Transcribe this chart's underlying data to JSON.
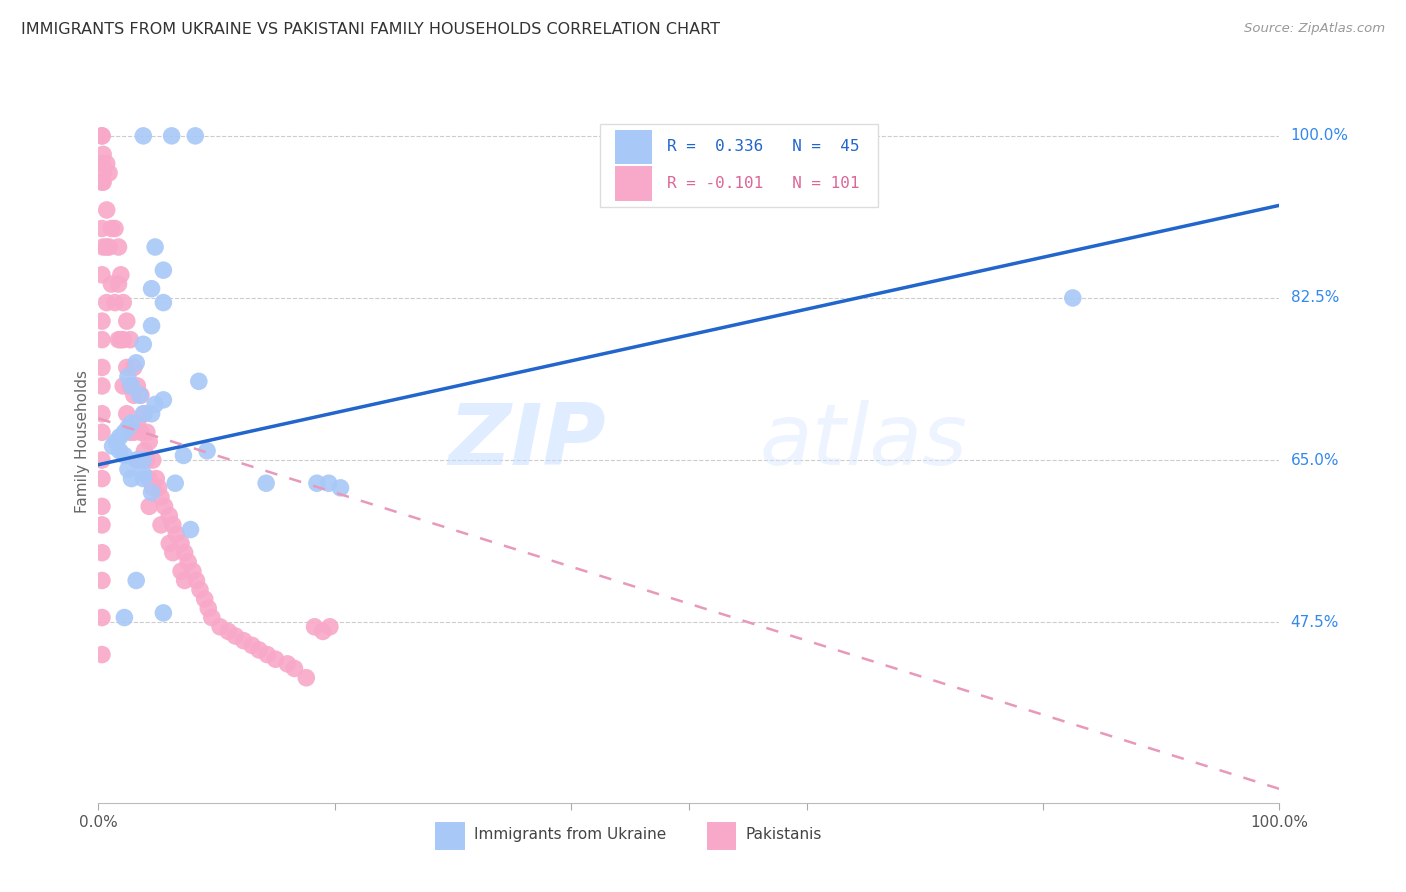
{
  "title": "IMMIGRANTS FROM UKRAINE VS PAKISTANI FAMILY HOUSEHOLDS CORRELATION CHART",
  "source": "Source: ZipAtlas.com",
  "ylabel": "Family Households",
  "ytick_labels": [
    "100.0%",
    "82.5%",
    "65.0%",
    "47.5%"
  ],
  "ytick_values": [
    1.0,
    0.825,
    0.65,
    0.475
  ],
  "xlim": [
    0.0,
    1.0
  ],
  "ylim": [
    0.28,
    1.06
  ],
  "ukraine_color": "#A8C8F8",
  "pakistan_color": "#F8A8C8",
  "ukraine_line_color": "#2266CC",
  "pakistan_line_color": "#E899BB",
  "watermark_zip": "ZIP",
  "watermark_atlas": "atlas",
  "grid_color": "#CCCCCC",
  "background_color": "#FFFFFF",
  "ukraine_line_y0": 0.645,
  "ukraine_line_y1": 0.925,
  "pakistan_line_y0": 0.695,
  "pakistan_line_y1": 0.295,
  "ukraine_scatter_x": [
    0.062,
    0.082,
    0.038,
    0.048,
    0.055,
    0.045,
    0.055,
    0.045,
    0.038,
    0.032,
    0.025,
    0.028,
    0.035,
    0.055,
    0.048,
    0.045,
    0.038,
    0.028,
    0.025,
    0.022,
    0.018,
    0.015,
    0.012,
    0.018,
    0.022,
    0.032,
    0.025,
    0.038,
    0.028,
    0.065,
    0.045,
    0.142,
    0.072,
    0.085,
    0.092,
    0.078,
    0.032,
    0.055,
    0.022,
    0.185,
    0.195,
    0.205,
    0.825,
    0.038,
    0.038
  ],
  "ukraine_scatter_y": [
    1.0,
    1.0,
    1.0,
    0.88,
    0.855,
    0.835,
    0.82,
    0.795,
    0.775,
    0.755,
    0.74,
    0.73,
    0.72,
    0.715,
    0.71,
    0.7,
    0.7,
    0.69,
    0.685,
    0.68,
    0.675,
    0.67,
    0.665,
    0.66,
    0.655,
    0.65,
    0.64,
    0.635,
    0.63,
    0.625,
    0.615,
    0.625,
    0.655,
    0.735,
    0.66,
    0.575,
    0.52,
    0.485,
    0.48,
    0.625,
    0.625,
    0.62,
    0.825,
    0.63,
    0.65
  ],
  "pakistan_scatter_x": [
    0.004,
    0.004,
    0.004,
    0.004,
    0.007,
    0.007,
    0.007,
    0.007,
    0.009,
    0.009,
    0.011,
    0.011,
    0.014,
    0.014,
    0.017,
    0.017,
    0.017,
    0.019,
    0.019,
    0.021,
    0.021,
    0.021,
    0.024,
    0.024,
    0.024,
    0.027,
    0.027,
    0.027,
    0.03,
    0.03,
    0.03,
    0.033,
    0.033,
    0.033,
    0.036,
    0.036,
    0.036,
    0.039,
    0.039,
    0.041,
    0.041,
    0.043,
    0.043,
    0.043,
    0.046,
    0.046,
    0.049,
    0.051,
    0.053,
    0.053,
    0.056,
    0.06,
    0.06,
    0.063,
    0.063,
    0.066,
    0.07,
    0.07,
    0.073,
    0.073,
    0.076,
    0.08,
    0.083,
    0.086,
    0.09,
    0.093,
    0.096,
    0.103,
    0.11,
    0.116,
    0.123,
    0.13,
    0.136,
    0.143,
    0.15,
    0.16,
    0.166,
    0.176,
    0.183,
    0.19,
    0.196,
    0.003,
    0.003,
    0.003,
    0.003,
    0.003,
    0.003,
    0.003,
    0.003,
    0.003,
    0.003,
    0.003,
    0.003,
    0.003,
    0.003,
    0.003,
    0.003,
    0.003,
    0.003,
    0.003,
    0.003
  ],
  "pakistan_scatter_y": [
    0.98,
    0.96,
    0.95,
    0.88,
    0.97,
    0.92,
    0.88,
    0.82,
    0.96,
    0.88,
    0.9,
    0.84,
    0.9,
    0.82,
    0.88,
    0.84,
    0.78,
    0.85,
    0.78,
    0.82,
    0.78,
    0.73,
    0.8,
    0.75,
    0.7,
    0.78,
    0.73,
    0.68,
    0.75,
    0.72,
    0.68,
    0.73,
    0.69,
    0.65,
    0.72,
    0.68,
    0.65,
    0.7,
    0.66,
    0.68,
    0.65,
    0.67,
    0.63,
    0.6,
    0.65,
    0.62,
    0.63,
    0.62,
    0.61,
    0.58,
    0.6,
    0.59,
    0.56,
    0.58,
    0.55,
    0.57,
    0.56,
    0.53,
    0.55,
    0.52,
    0.54,
    0.53,
    0.52,
    0.51,
    0.5,
    0.49,
    0.48,
    0.47,
    0.465,
    0.46,
    0.455,
    0.45,
    0.445,
    0.44,
    0.435,
    0.43,
    0.425,
    0.415,
    0.47,
    0.465,
    0.47,
    1.0,
    1.0,
    0.97,
    0.95,
    0.9,
    0.85,
    0.8,
    0.78,
    0.75,
    0.73,
    0.7,
    0.68,
    0.65,
    0.63,
    0.6,
    0.58,
    0.55,
    0.52,
    0.48,
    0.44
  ]
}
